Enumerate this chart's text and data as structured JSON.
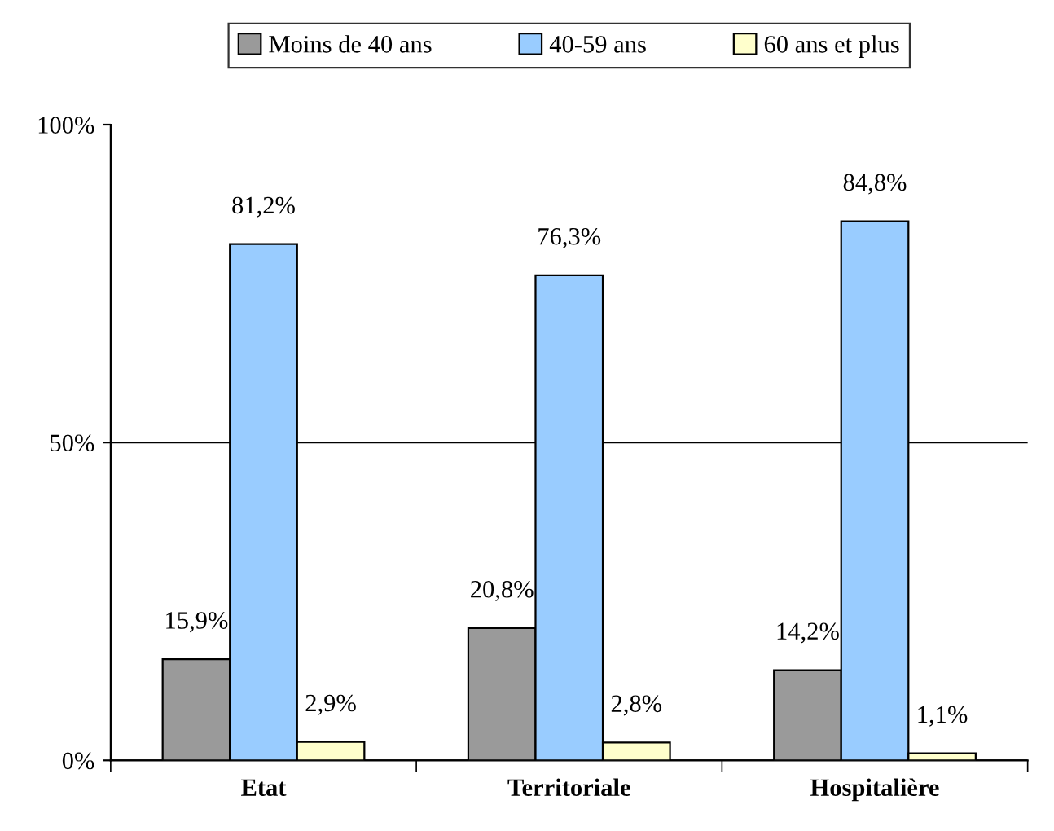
{
  "chart_data": {
    "type": "bar",
    "categories": [
      "Etat",
      "Territoriale",
      "Hospitalière"
    ],
    "series": [
      {
        "name": "Moins de 40 ans",
        "color": "#9a9a9a",
        "values": [
          15.9,
          20.8,
          14.2
        ],
        "value_labels": [
          "15,9%",
          "20,8%",
          "14,2%"
        ]
      },
      {
        "name": "40-59 ans",
        "color": "#99ccff",
        "values": [
          81.2,
          76.3,
          84.8
        ],
        "value_labels": [
          "81,2%",
          "76,3%",
          "84,8%"
        ]
      },
      {
        "name": "60 ans et plus",
        "color": "#ffffcc",
        "values": [
          2.9,
          2.8,
          1.1
        ],
        "value_labels": [
          "2,9%",
          "2,8%",
          "1,1%"
        ]
      }
    ],
    "ylim": [
      0,
      100
    ],
    "yticks": [
      {
        "value": 0,
        "label": "0%"
      },
      {
        "value": 50,
        "label": "50%"
      },
      {
        "value": 100,
        "label": "100%"
      }
    ],
    "grid": "y",
    "legend": "top"
  }
}
